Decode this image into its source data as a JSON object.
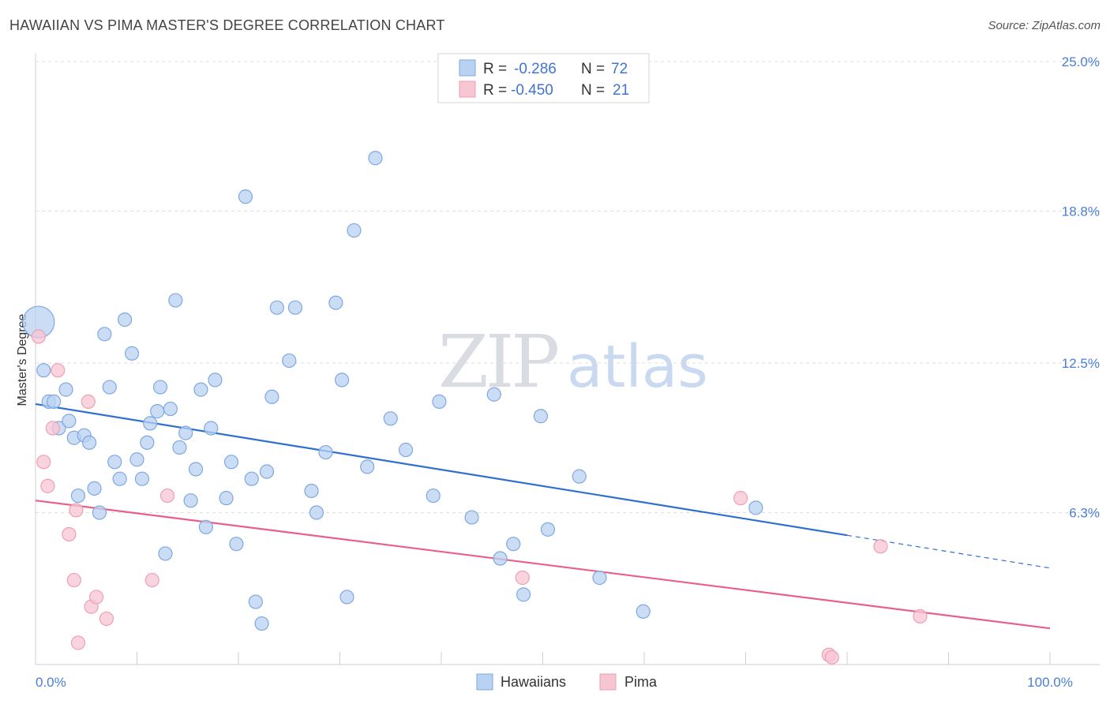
{
  "header": {
    "title": "HAWAIIAN VS PIMA MASTER'S DEGREE CORRELATION CHART",
    "source": "Source: ZipAtlas.com"
  },
  "watermark": {
    "zip": "ZIP",
    "atlas": "atlas"
  },
  "legend": {
    "r_label": "R =",
    "n_label": "N =",
    "hawaiians": {
      "r": "-0.286",
      "n": "72"
    },
    "pima": {
      "r": "-0.450",
      "n": "21"
    }
  },
  "bottom_legend": {
    "hawaiians": "Hawaiians",
    "pima": "Pima"
  },
  "colors": {
    "hawaiians_fill": "#b9d2f2",
    "hawaiians_stroke": "#7fa8e0",
    "hawaiians_line": "#2f6fd0",
    "pima_fill": "#f7c6d3",
    "pima_stroke": "#ee9fb5",
    "pima_line": "#e8608a"
  },
  "chart_data": {
    "type": "scatter",
    "title": "HAWAIIAN VS PIMA MASTER'S DEGREE CORRELATION CHART",
    "xlabel": "",
    "ylabel": "Master's Degree",
    "xlim": [
      0,
      100
    ],
    "ylim": [
      0,
      25
    ],
    "x_ticks": [
      0,
      10,
      20,
      30,
      40,
      50,
      60,
      70,
      80,
      90,
      100
    ],
    "x_tick_labels": {
      "0": "0.0%",
      "100": "100.0%"
    },
    "y_ticks": [
      6.3,
      12.5,
      18.8,
      25.0
    ],
    "y_tick_labels": [
      "6.3%",
      "12.5%",
      "18.8%",
      "25.0%"
    ],
    "grid": true,
    "legend_position": "top-center",
    "series": [
      {
        "name": "Hawaiians",
        "points": [
          [
            0.3,
            14.2
          ],
          [
            0.8,
            12.2
          ],
          [
            1.3,
            10.9
          ],
          [
            1.8,
            10.9
          ],
          [
            2.3,
            9.8
          ],
          [
            3.0,
            11.4
          ],
          [
            3.3,
            10.1
          ],
          [
            3.8,
            9.4
          ],
          [
            4.2,
            7.0
          ],
          [
            4.8,
            9.5
          ],
          [
            5.3,
            9.2
          ],
          [
            5.8,
            7.3
          ],
          [
            6.3,
            6.3
          ],
          [
            6.8,
            13.7
          ],
          [
            7.3,
            11.5
          ],
          [
            7.8,
            8.4
          ],
          [
            8.3,
            7.7
          ],
          [
            8.8,
            14.3
          ],
          [
            9.5,
            12.9
          ],
          [
            10.0,
            8.5
          ],
          [
            10.5,
            7.7
          ],
          [
            11.0,
            9.2
          ],
          [
            11.3,
            10.0
          ],
          [
            12.0,
            10.5
          ],
          [
            12.3,
            11.5
          ],
          [
            12.8,
            4.6
          ],
          [
            13.3,
            10.6
          ],
          [
            13.8,
            15.1
          ],
          [
            14.2,
            9.0
          ],
          [
            14.8,
            9.6
          ],
          [
            15.3,
            6.8
          ],
          [
            15.8,
            8.1
          ],
          [
            16.3,
            11.4
          ],
          [
            16.8,
            5.7
          ],
          [
            17.3,
            9.8
          ],
          [
            17.7,
            11.8
          ],
          [
            18.8,
            6.9
          ],
          [
            19.3,
            8.4
          ],
          [
            19.8,
            5.0
          ],
          [
            20.7,
            19.4
          ],
          [
            21.3,
            7.7
          ],
          [
            21.7,
            2.6
          ],
          [
            22.3,
            1.7
          ],
          [
            22.8,
            8.0
          ],
          [
            23.3,
            11.1
          ],
          [
            23.8,
            14.8
          ],
          [
            25.0,
            12.6
          ],
          [
            25.6,
            14.8
          ],
          [
            27.2,
            7.2
          ],
          [
            27.7,
            6.3
          ],
          [
            28.6,
            8.8
          ],
          [
            29.6,
            15.0
          ],
          [
            30.2,
            11.8
          ],
          [
            30.7,
            2.8
          ],
          [
            31.4,
            18.0
          ],
          [
            32.7,
            8.2
          ],
          [
            33.5,
            21.0
          ],
          [
            35.0,
            10.2
          ],
          [
            36.5,
            8.9
          ],
          [
            39.2,
            7.0
          ],
          [
            39.8,
            10.9
          ],
          [
            43.0,
            6.1
          ],
          [
            45.2,
            11.2
          ],
          [
            45.8,
            4.4
          ],
          [
            47.1,
            5.0
          ],
          [
            48.1,
            2.9
          ],
          [
            49.8,
            10.3
          ],
          [
            50.5,
            5.6
          ],
          [
            53.6,
            7.8
          ],
          [
            55.6,
            3.6
          ],
          [
            59.9,
            2.2
          ],
          [
            71.0,
            6.5
          ]
        ]
      },
      {
        "name": "Pima",
        "points": [
          [
            0.3,
            13.6
          ],
          [
            0.8,
            8.4
          ],
          [
            1.2,
            7.4
          ],
          [
            1.7,
            9.8
          ],
          [
            2.2,
            12.2
          ],
          [
            3.3,
            5.4
          ],
          [
            3.8,
            3.5
          ],
          [
            4.0,
            6.4
          ],
          [
            4.2,
            0.9
          ],
          [
            5.2,
            10.9
          ],
          [
            5.5,
            2.4
          ],
          [
            6.0,
            2.8
          ],
          [
            7.0,
            1.9
          ],
          [
            11.5,
            3.5
          ],
          [
            13.0,
            7.0
          ],
          [
            48.0,
            3.6
          ],
          [
            69.5,
            6.9
          ],
          [
            78.2,
            0.4
          ],
          [
            78.5,
            0.3
          ],
          [
            83.3,
            4.9
          ],
          [
            87.2,
            2.0
          ]
        ]
      }
    ],
    "trendlines": [
      {
        "name": "Hawaiians",
        "x": [
          0,
          100
        ],
        "y": [
          10.8,
          4.0
        ],
        "solid_until": 80
      },
      {
        "name": "Pima",
        "x": [
          0,
          100
        ],
        "y": [
          6.8,
          1.5
        ]
      }
    ]
  }
}
